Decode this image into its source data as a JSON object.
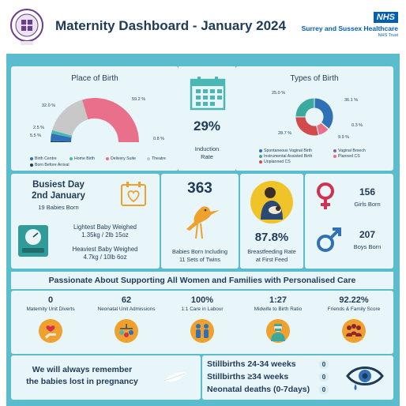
{
  "header": {
    "title": "Maternity Dashboard - January 2024",
    "nhs_badge": "NHS",
    "trust_name": "Surrey and Sussex Healthcare",
    "trust_sub": "NHS Trust",
    "logo_text": "SURREY & SUSSEX HEALTHCARE"
  },
  "place_of_birth": {
    "title": "Place of Birth",
    "labels": [
      "32.0 %",
      "59.2 %",
      "2.5 %",
      "5.5 %",
      "0.8 %"
    ],
    "legend": [
      "Birth Centre",
      "Home Birth",
      "Delivery Suite",
      "Theatre",
      "Born Before Arrival"
    ]
  },
  "induction": {
    "value": "29%",
    "label_line1": "Induction",
    "label_line2": "Rate"
  },
  "types_of_birth": {
    "title": "Types of Birth",
    "labels": [
      "25.0 %",
      "36.1 %",
      "0.3 %",
      "28.7 %",
      "9.9 %"
    ],
    "legend": [
      "Spontaneous Vaginal Birth",
      "Vaginal Breech",
      "Instrumental Assisted Birth",
      "Planned CS",
      "Unplanned CS"
    ]
  },
  "chart_data": [
    {
      "type": "pie",
      "title": "Place of Birth",
      "categories": [
        "Delivery Suite",
        "Theatre",
        "Birth Centre",
        "Home Birth",
        "Born Before Arrival"
      ],
      "values": [
        59.2,
        32.0,
        5.5,
        2.5,
        0.8
      ],
      "colors": [
        "#e8708a",
        "#c8c8c8",
        "#2f70b6",
        "#49b8b5",
        "#1f3b57"
      ]
    },
    {
      "type": "pie",
      "title": "Types of Birth",
      "categories": [
        "Spontaneous Vaginal Birth",
        "Vaginal Breech",
        "Planned CS",
        "Unplanned CS",
        "Instrumental Assisted Birth"
      ],
      "values": [
        36.1,
        0.3,
        9.9,
        28.7,
        25.0
      ],
      "colors": [
        "#2f70b6",
        "#9a5ab0",
        "#e8708a",
        "#d24a4a",
        "#3aa99e"
      ]
    }
  ],
  "busiest": {
    "line1": "Busiest Day",
    "line2": "2nd January",
    "sub": "19 Babies Born"
  },
  "weights": {
    "lightest_title": "Lightest Baby Weighed",
    "lightest_value": "1.35kg / 2lb 15oz",
    "heaviest_title": "Heaviest Baby Weighed",
    "heaviest_value": "4.7kg / 10lb 6oz"
  },
  "babies": {
    "value": "363",
    "line1": "Babies Born Including",
    "line2": "11 Sets of Twins"
  },
  "breastfeeding": {
    "value": "87.8%",
    "line1": "Breastfeeding Rate",
    "line2": "at First Feed"
  },
  "gender": {
    "girls_value": "156",
    "girls_label": "Girls Born",
    "boys_value": "207",
    "boys_label": "Boys Born"
  },
  "banner": "Passionate About Supporting All Women and Families with Personalised Care",
  "kpis": [
    {
      "value": "0",
      "label": "Maternity Unit Diverts"
    },
    {
      "value": "62",
      "label": "Neonatal Unit Admissions"
    },
    {
      "value": "100%",
      "label": "1:1 Care in Labour"
    },
    {
      "value": "1:27",
      "label": "Midwife to Birth Ratio"
    },
    {
      "value": "92.22%",
      "label": "Friends & Family Score"
    }
  ],
  "remember": {
    "line1": "We will always remember",
    "line2": "the babies lost in pregnancy"
  },
  "stillbirths": [
    {
      "label": "Stillbirths 24-34 weeks",
      "value": "0"
    },
    {
      "label": "Stillbirths ≥34 weeks",
      "value": "0"
    },
    {
      "label": "Neonatal deaths (0-7days)",
      "value": "0"
    }
  ],
  "colors": {
    "board": "#5bbccd",
    "card": "#e8f5f9",
    "navy": "#1f3b57",
    "nhs_blue": "#005eb8",
    "kpi_orange": "#f0a02c",
    "girl_red": "#d2314f",
    "boy_blue": "#2f70b6"
  }
}
